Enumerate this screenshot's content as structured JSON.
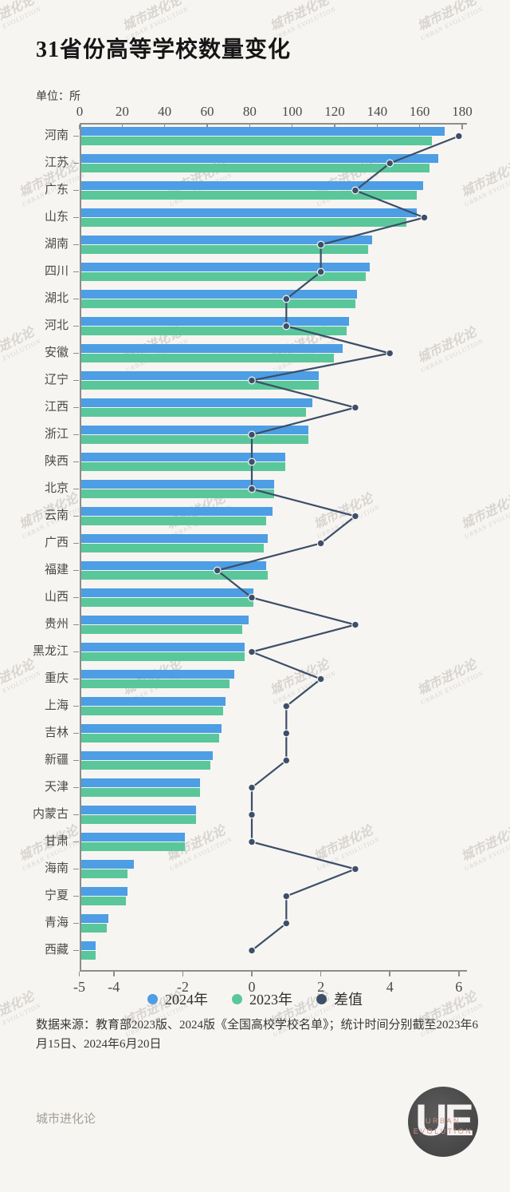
{
  "title": "31省份高等学校数量变化",
  "unit_label": "单位：所",
  "watermark": {
    "line1": "城市进化论",
    "line2": "URBAN EVOLUTION"
  },
  "chart_data": {
    "type": "bar",
    "orientation": "horizontal",
    "title": "31省份高等学校数量变化",
    "unit": "所",
    "categories": [
      "河南",
      "江苏",
      "广东",
      "山东",
      "湖南",
      "四川",
      "湖北",
      "河北",
      "安徽",
      "辽宁",
      "江西",
      "浙江",
      "陕西",
      "北京",
      "云南",
      "广西",
      "福建",
      "山西",
      "贵州",
      "黑龙江",
      "重庆",
      "上海",
      "吉林",
      "新疆",
      "天津",
      "内蒙古",
      "甘肃",
      "海南",
      "宁夏",
      "青海",
      "西藏"
    ],
    "series": [
      {
        "name": "2024年",
        "type": "bar",
        "color": "#4d9ee4",
        "values": [
          171,
          168,
          161,
          158,
          137,
          136,
          130,
          126,
          123,
          112,
          109,
          107,
          96,
          91,
          90,
          88,
          87,
          81,
          79,
          77,
          72,
          68,
          66,
          62,
          56,
          54,
          49,
          25,
          22,
          13,
          7
        ]
      },
      {
        "name": "2023年",
        "type": "bar",
        "color": "#5ac79b",
        "values": [
          165,
          164,
          158,
          153,
          135,
          134,
          129,
          125,
          119,
          112,
          106,
          107,
          96,
          91,
          87,
          86,
          88,
          81,
          76,
          77,
          70,
          67,
          65,
          61,
          56,
          54,
          49,
          22,
          21,
          12,
          7
        ]
      },
      {
        "name": "差值",
        "type": "line",
        "color": "#3d4f68",
        "values": [
          6,
          4,
          3,
          5,
          2,
          2,
          1,
          1,
          4,
          0,
          3,
          0,
          0,
          0,
          3,
          2,
          -1,
          0,
          3,
          0,
          2,
          1,
          1,
          1,
          0,
          0,
          0,
          3,
          1,
          1,
          0
        ]
      }
    ],
    "top_axis": {
      "min": 0,
      "max": 180,
      "ticks": [
        0,
        20,
        40,
        60,
        80,
        100,
        120,
        140,
        160,
        180
      ]
    },
    "bottom_axis": {
      "min": -5,
      "max": 6,
      "ticks": [
        -5,
        -4,
        -2,
        0,
        2,
        4,
        6
      ]
    },
    "grid": false,
    "legend_position": "bottom"
  },
  "legend": {
    "items": [
      {
        "label": "2024年",
        "color": "#4d9ee4"
      },
      {
        "label": "2023年",
        "color": "#5ac79b"
      },
      {
        "label": "差值",
        "color": "#3d4f68"
      }
    ]
  },
  "footer": {
    "source": "数据来源：教育部2023版、2024版《全国高校学校名单》；统计时间分别截至2023年6月15日、2024年6月20日",
    "brand": "城市进化论"
  },
  "logo": {
    "initials": "UE",
    "line1": "URBAN",
    "line2": "EVOLUTION"
  }
}
